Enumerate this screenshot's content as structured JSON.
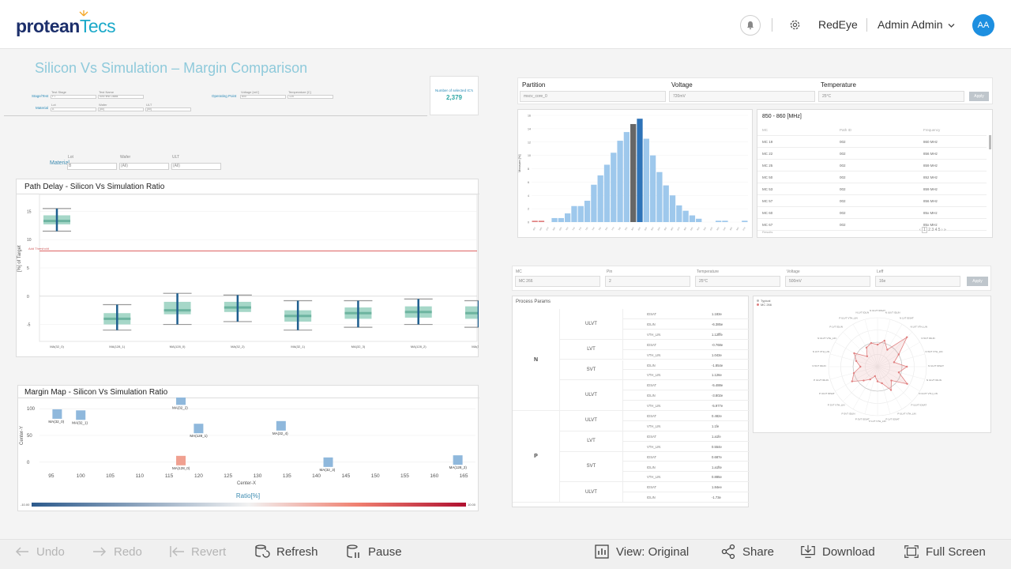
{
  "header": {
    "logo_part1": "protean",
    "logo_part2": "Tecs",
    "org": "RedEye",
    "user": "Admin Admin",
    "avatar": "AA"
  },
  "page_title": "Silicon Vs Simulation – Margin Comparison",
  "filters_top": {
    "stage_label": "Stage/Test",
    "material_label": "Material",
    "operating_point_label": "Operating Point",
    "test_stage_label": "Test Stage",
    "test_stage_value": "FT",
    "test_name_label": "Test Name",
    "test_name_value": "func test Datas",
    "lot_label": "Lot",
    "lot_value": "A",
    "wafer_label": "Wafer",
    "wafer_value": "[All]",
    "ulc_label": "ULT",
    "ulc_value": "[All]",
    "voltage_label": "Voltage [mV]",
    "voltage_value": "800",
    "temperature_label": "Temperature [C]",
    "temperature_value": "125"
  },
  "selection": {
    "label": "Number of selected IC's",
    "value": "2,379"
  },
  "material_filter": {
    "label": "Material",
    "lot_label": "Lot",
    "lot_value": "B",
    "wafer_label": "Wafer",
    "wafer_value": "(All)",
    "ult_label": "ULT",
    "ult_value": "(All)"
  },
  "path_delay": {
    "title": "Path Delay - Silicon Vs Simulation Ratio",
    "ylabel": "[%] of Target",
    "threshold_label": "Add Threshold"
  },
  "margin_map": {
    "title": "Margin Map - Silicon Vs Simulation Ratio",
    "xlabel": "Center-X",
    "ylabel": "Center-Y",
    "colorbar_label": "Ratio[%]",
    "colorbar_min": "-10.00",
    "colorbar_max": "10.00"
  },
  "right_filters": {
    "partition_label": "Partition",
    "partition_value": "mscv_core_0",
    "voltage_label": "Voltage",
    "voltage_value": "720mV",
    "temperature_label": "Temperature",
    "temperature_value": "25°C",
    "apply": "Apply"
  },
  "histogram": {
    "ylabel": "Measure [%]"
  },
  "freq_table": {
    "title": "850 - 860 [MHz]",
    "headers": [
      "MC",
      "Path ID",
      "Frequency"
    ],
    "rows": [
      [
        "MC 19",
        "002",
        "860 MHz"
      ],
      [
        "MC 22",
        "002",
        "856 MHz"
      ],
      [
        "MC 25",
        "002",
        "859 MHz"
      ],
      [
        "MC 50",
        "002",
        "852 MHz"
      ],
      [
        "MC 53",
        "002",
        "859 MHz"
      ],
      [
        "MC 57",
        "002",
        "856 MHz"
      ],
      [
        "MC 60",
        "002",
        "85x MHz"
      ],
      [
        "MC 67",
        "002",
        "85x MHz"
      ]
    ],
    "footer": "Results"
  },
  "mc_filters": {
    "mc_label": "MC",
    "mc_value": "MC 266",
    "pin_label": "Pin",
    "pin_value": "2",
    "temperature_label": "Temperature",
    "temperature_value": "25°C",
    "voltage_label": "Voltage",
    "voltage_value": "500mV",
    "leff_label": "Leff",
    "leff_value": "16e",
    "apply": "Apply"
  },
  "process_params": {
    "title": "Process Params",
    "groups": [
      {
        "type": "N",
        "subgroups": [
          {
            "name": "ULVT",
            "rows": [
              [
                "IDSAT",
                "1.183e"
              ],
              [
                "IDLIN",
                "-6.385e"
              ],
              [
                "VTH_LIN",
                "1.12fffe"
              ]
            ]
          },
          {
            "name": "LVT",
            "rows": [
              [
                "IDSAT",
                "-0.768e"
              ],
              [
                "VTH_LIN",
                "1.043e"
              ]
            ]
          },
          {
            "name": "SVT",
            "rows": [
              [
                "IDLIN",
                "-1.854e"
              ],
              [
                "VTH_LIN",
                "1.126e"
              ]
            ]
          },
          {
            "name": "ULVT",
            "rows": [
              [
                "IDSAT",
                "-5.488e"
              ],
              [
                "IDLIN",
                "-3.802e"
              ],
              [
                "VTH_LIN",
                "-5.977e"
              ]
            ]
          }
        ]
      },
      {
        "type": "P",
        "subgroups": [
          {
            "name": "ULVT",
            "rows": [
              [
                "IDSAT",
                "0.482e"
              ],
              [
                "VTH_LIN",
                "1.1fe"
              ]
            ]
          },
          {
            "name": "LVT",
            "rows": [
              [
                "IDSAT",
                "1.a1fe"
              ],
              [
                "VTH_LIN",
                "0.554e"
              ]
            ]
          },
          {
            "name": "SVT",
            "rows": [
              [
                "IDSAT",
                "0.687e"
              ],
              [
                "IDLIN",
                "1.a1fte"
              ],
              [
                "VTH_LIN",
                "0.885e"
              ]
            ]
          },
          {
            "name": "ULVT",
            "rows": [
              [
                "IDSAT",
                "1.84ee"
              ],
              [
                "IDLIN",
                "-1.73e"
              ]
            ]
          }
        ]
      }
    ]
  },
  "radar": {
    "legend": [
      {
        "name": "Typical",
        "color": "#bbbbbb"
      },
      {
        "name": "MC 266",
        "color": "#e08080"
      }
    ]
  },
  "toolbar": {
    "undo": "Undo",
    "redo": "Redo",
    "revert": "Revert",
    "refresh": "Refresh",
    "pause": "Pause",
    "view": "View: Original",
    "share": "Share",
    "download": "Download",
    "fullscreen": "Full Screen"
  },
  "chart_data": [
    {
      "type": "box",
      "title": "Path Delay - Silicon Vs Simulation Ratio",
      "ylabel": "[%] of Target",
      "categories": [
        "MA(32_0)",
        "MA(128_1)",
        "MA(128_0)",
        "MA(32_2)",
        "MA(32_1)",
        "MA(32_3)",
        "MA(128_2)",
        "MA(32_4)"
      ],
      "box": [
        {
          "min": 11.5,
          "q1": 12.7,
          "median": 13.3,
          "q3": 14.3,
          "max": 15.5
        },
        {
          "min": -6.0,
          "q1": -5.0,
          "median": -4.0,
          "q3": -3.0,
          "max": -1.5
        },
        {
          "min": -5.0,
          "q1": -3.2,
          "median": -2.5,
          "q3": -1.0,
          "max": 0.5
        },
        {
          "min": -4.5,
          "q1": -2.8,
          "median": -2.0,
          "q3": -1.0,
          "max": 0.2
        },
        {
          "min": -6.0,
          "q1": -4.5,
          "median": -3.5,
          "q3": -2.5,
          "max": -0.8
        },
        {
          "min": -5.5,
          "q1": -4.0,
          "median": -3.0,
          "q3": -2.0,
          "max": -0.8
        },
        {
          "min": -5.0,
          "q1": -3.8,
          "median": -2.8,
          "q3": -1.8,
          "max": -0.5
        },
        {
          "min": -5.5,
          "q1": -4.0,
          "median": -3.0,
          "q3": -1.8,
          "max": -0.8
        }
      ],
      "threshold": 8,
      "yticks": [
        -5,
        0,
        5,
        10,
        15
      ],
      "ylim": [
        -8,
        18
      ]
    },
    {
      "type": "scatter",
      "title": "Margin Map - Silicon Vs Simulation Ratio",
      "xlabel": "Center-X",
      "ylabel": "Center-Y",
      "xticks": [
        95,
        100,
        105,
        110,
        115,
        120,
        125,
        130,
        135,
        140,
        145,
        150,
        155,
        160,
        165
      ],
      "yticks": [
        0,
        50,
        100
      ],
      "xlim": [
        93,
        167
      ],
      "ylim": [
        -15,
        115
      ],
      "points": [
        {
          "label": "MA(32_0)",
          "x": 96,
          "y": 90,
          "color": "#8fb8dc"
        },
        {
          "label": "MA(32_1)",
          "x": 100,
          "y": 88,
          "color": "#8fb8dc"
        },
        {
          "label": "MA(32_2)",
          "x": 117,
          "y": 116,
          "color": "#8fb8dc"
        },
        {
          "label": "MA(128_1)",
          "x": 120,
          "y": 63,
          "color": "#8fb8dc"
        },
        {
          "label": "MA(128_0)",
          "x": 117,
          "y": 3,
          "color": "#f0a090"
        },
        {
          "label": "MA(32_4)",
          "x": 134,
          "y": 68,
          "color": "#8fb8dc"
        },
        {
          "label": "MA(32_3)",
          "x": 142,
          "y": 0,
          "color": "#8fb8dc"
        },
        {
          "label": "MA(128_2)",
          "x": 164,
          "y": 4,
          "color": "#8fb8dc"
        }
      ]
    },
    {
      "type": "bar",
      "ylabel": "Measure [%]",
      "values": [
        0.2,
        0.2,
        0,
        0.6,
        0.6,
        1.3,
        2.4,
        2.4,
        3.2,
        5.6,
        7.0,
        8.6,
        10.4,
        12.2,
        13.5,
        14.7,
        15.5,
        12.5,
        10.0,
        7.5,
        5.5,
        4.0,
        2.5,
        1.7,
        1.0,
        0.5,
        0,
        0,
        0.2,
        0.2,
        0,
        0,
        0.2
      ],
      "highlight": [
        15,
        16
      ],
      "ylim": [
        0,
        16
      ]
    },
    {
      "type": "radar",
      "series": [
        {
          "name": "Typical",
          "values": [
            0.5,
            0.5,
            0.5,
            0.5,
            0.5,
            0.5,
            0.5,
            0.5,
            0.5,
            0.5,
            0.5,
            0.5,
            0.5,
            0.5,
            0.5,
            0.5,
            0.5,
            0.5,
            0.5,
            0.5,
            0.5,
            0.5,
            0.5,
            0.5
          ]
        },
        {
          "name": "MC 266",
          "values": [
            0.45,
            0.55,
            0.4,
            0.85,
            0.5,
            0.35,
            0.6,
            0.45,
            0.7,
            0.4,
            0.55,
            0.35,
            0.3,
            0.2,
            0.3,
            0.4,
            0.6,
            0.5,
            0.35,
            0.45,
            0.55,
            0.3,
            0.45,
            0.5
          ]
        }
      ]
    }
  ]
}
